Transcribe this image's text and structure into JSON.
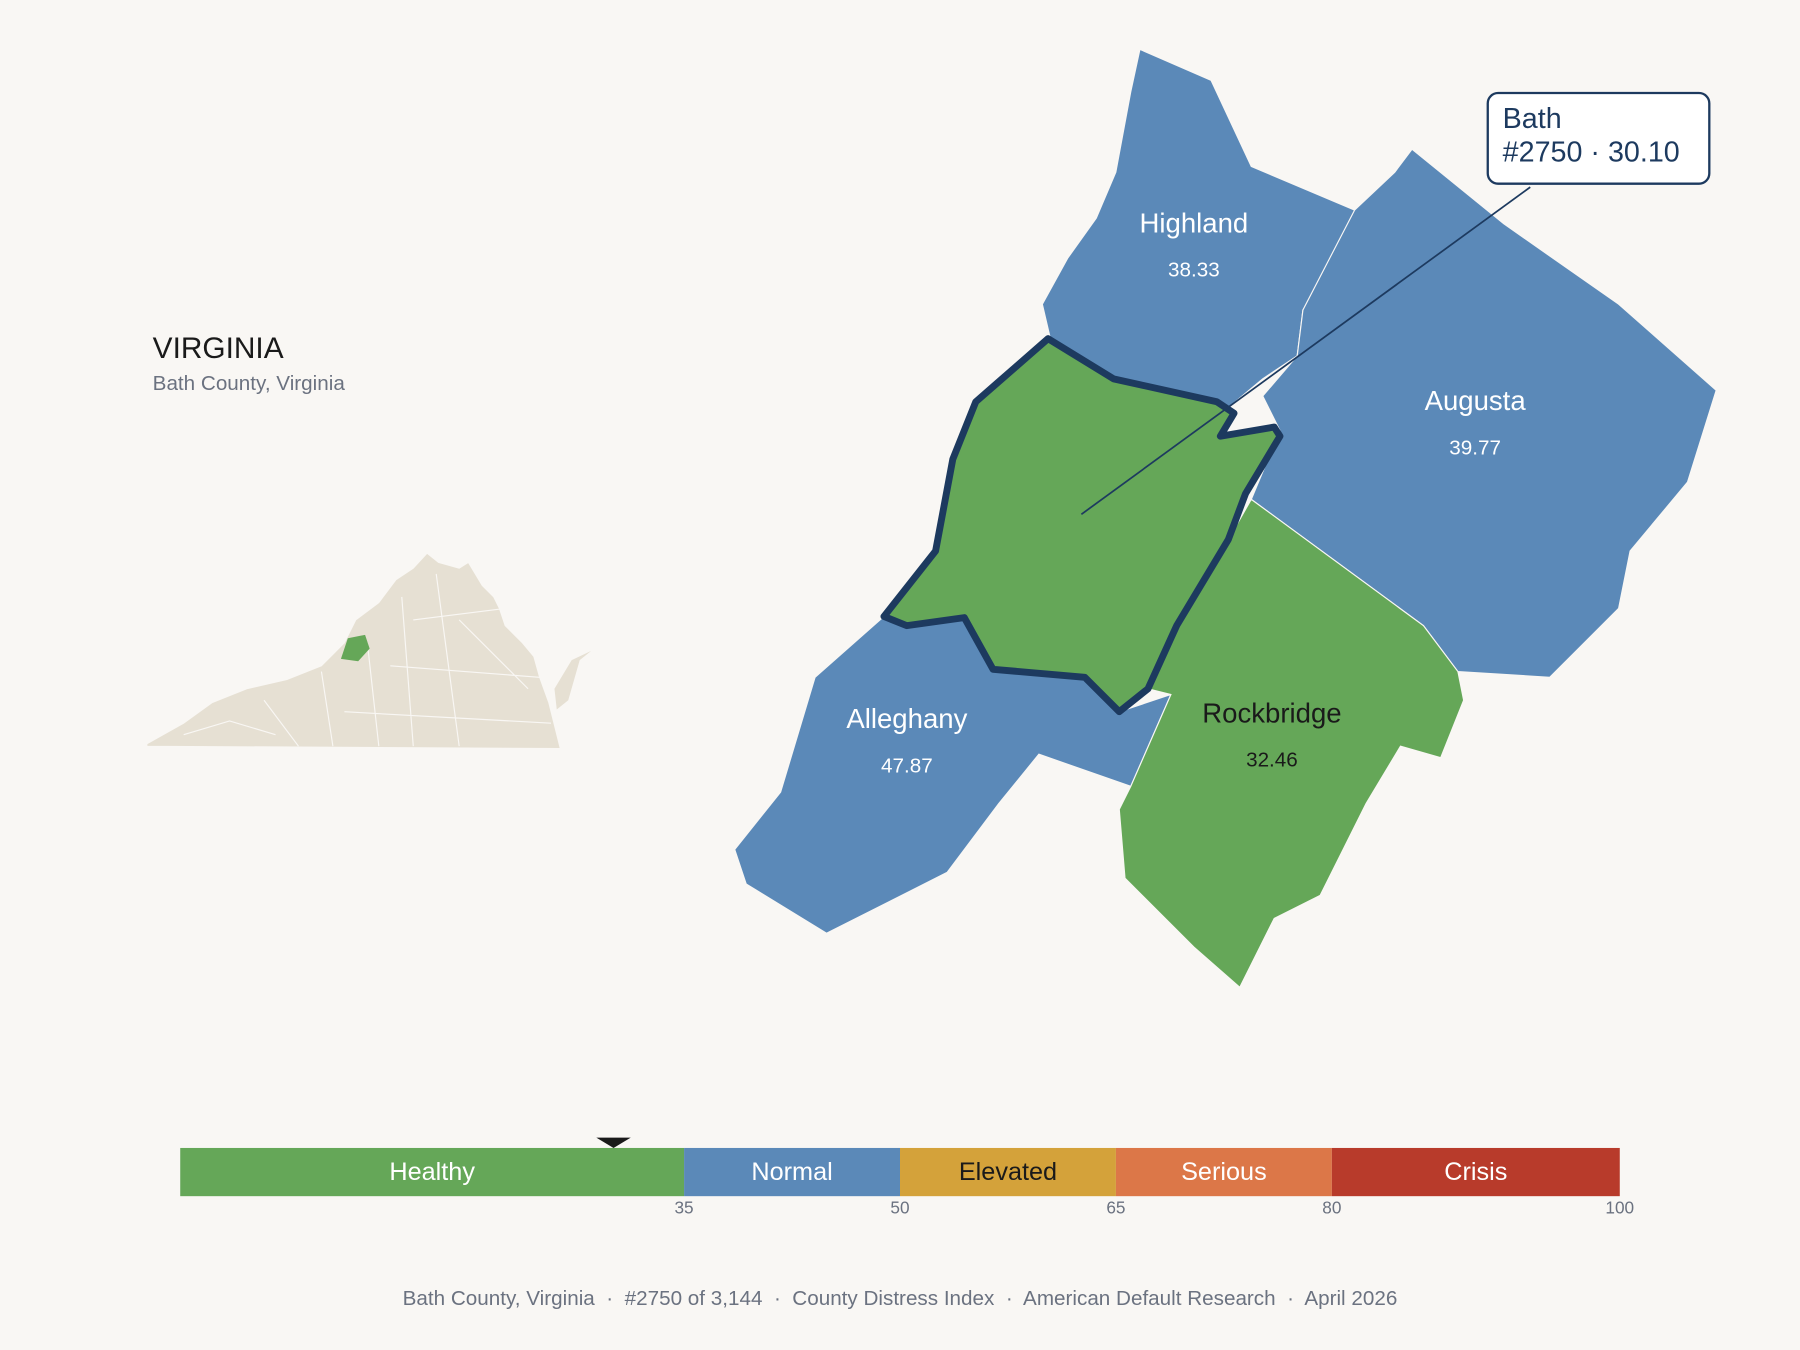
{
  "header": {
    "title": "VIRGINIA",
    "subtitle": "Bath County, Virginia"
  },
  "selected": {
    "name": "Bath",
    "detail": "#2750 · 30.10",
    "color": "#65a758",
    "outline": "#1d3a5f"
  },
  "counties": [
    {
      "name": "Highland",
      "value": "38.33",
      "color": "#5b89b8",
      "text_color": "#ffffff"
    },
    {
      "name": "Augusta",
      "value": "39.77",
      "color": "#5b89b8",
      "text_color": "#ffffff"
    },
    {
      "name": "Alleghany",
      "value": "47.87",
      "color": "#5b89b8",
      "text_color": "#ffffff"
    },
    {
      "name": "Rockbridge",
      "value": "32.46",
      "color": "#65a758",
      "text_color": "#1a1a1a"
    }
  ],
  "scale": {
    "lim": [
      0,
      100
    ],
    "marker": 30.1,
    "bands": [
      {
        "label": "Healthy",
        "to": 35,
        "color": "#65a758",
        "text_color": "#ffffff"
      },
      {
        "label": "Normal",
        "to": 50,
        "color": "#5b89b8",
        "text_color": "#ffffff"
      },
      {
        "label": "Elevated",
        "to": 65,
        "color": "#d4a23a",
        "text_color": "#1a1a1a"
      },
      {
        "label": "Serious",
        "to": 80,
        "color": "#dc7748",
        "text_color": "#ffffff"
      },
      {
        "label": "Crisis",
        "to": 100,
        "color": "#b83b2b",
        "text_color": "#ffffff"
      }
    ]
  },
  "footer": "Bath County, Virginia  ·  #2750 of 3,144  ·  County Distress Index  ·  American Default Research  ·  April 2026"
}
